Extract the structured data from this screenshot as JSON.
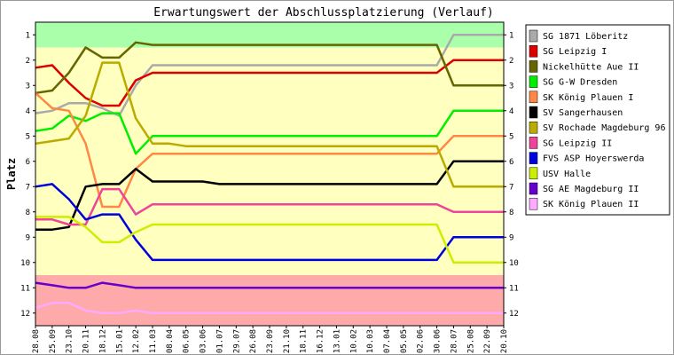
{
  "chart_data": {
    "type": "line",
    "title": "Erwartungswert der Abschlussplatzierung (Verlauf)",
    "ylabel": "Platz",
    "xlabel": "",
    "ylim": [
      12.5,
      0.5
    ],
    "y_inverted": true,
    "y_ticks": [
      1,
      2,
      3,
      4,
      5,
      6,
      7,
      8,
      9,
      10,
      11,
      12
    ],
    "grid": false,
    "legend_position": "right",
    "zones": [
      {
        "from": 0.5,
        "to": 1.5,
        "color": "#aaffaa"
      },
      {
        "from": 1.5,
        "to": 10.5,
        "color": "#ffffc0"
      },
      {
        "from": 10.5,
        "to": 12.5,
        "color": "#ffaaaa"
      }
    ],
    "x": [
      "28.08",
      "25.09",
      "23.10",
      "20.11",
      "18.12",
      "15.01",
      "12.02",
      "11.03",
      "08.04",
      "06.05",
      "03.06",
      "01.07",
      "29.07",
      "26.08",
      "23.09",
      "21.10",
      "18.11",
      "16.12",
      "13.01",
      "10.02",
      "10.03",
      "07.04",
      "05.05",
      "02.06",
      "30.06",
      "28.07",
      "25.08",
      "22.09",
      "20.10"
    ],
    "series": [
      {
        "name": "SG 1871 Löberitz",
        "color": "#aaaaaa",
        "values": [
          4.1,
          4.0,
          3.7,
          3.7,
          3.9,
          4.2,
          3.0,
          2.2,
          2.2,
          2.2,
          2.2,
          2.2,
          2.2,
          2.2,
          2.2,
          2.2,
          2.2,
          2.2,
          2.2,
          2.2,
          2.2,
          2.2,
          2.2,
          2.2,
          2.2,
          1.0,
          1.0,
          1.0,
          1.0
        ]
      },
      {
        "name": "SG Leipzig I",
        "color": "#dd0000",
        "values": [
          2.3,
          2.2,
          2.9,
          3.5,
          3.8,
          3.8,
          2.8,
          2.5,
          2.5,
          2.5,
          2.5,
          2.5,
          2.5,
          2.5,
          2.5,
          2.5,
          2.5,
          2.5,
          2.5,
          2.5,
          2.5,
          2.5,
          2.5,
          2.5,
          2.5,
          2.0,
          2.0,
          2.0,
          2.0
        ]
      },
      {
        "name": "Nickelhütte Aue II",
        "color": "#666600",
        "values": [
          3.3,
          3.2,
          2.5,
          1.5,
          1.9,
          1.9,
          1.3,
          1.4,
          1.4,
          1.4,
          1.4,
          1.4,
          1.4,
          1.4,
          1.4,
          1.4,
          1.4,
          1.4,
          1.4,
          1.4,
          1.4,
          1.4,
          1.4,
          1.4,
          1.4,
          3.0,
          3.0,
          3.0,
          3.0
        ]
      },
      {
        "name": "SG G-W Dresden",
        "color": "#00ee00",
        "values": [
          4.8,
          4.7,
          4.2,
          4.4,
          4.1,
          4.1,
          5.7,
          5.0,
          5.0,
          5.0,
          5.0,
          5.0,
          5.0,
          5.0,
          5.0,
          5.0,
          5.0,
          5.0,
          5.0,
          5.0,
          5.0,
          5.0,
          5.0,
          5.0,
          5.0,
          4.0,
          4.0,
          4.0,
          4.0
        ]
      },
      {
        "name": "SK König Plauen I",
        "color": "#ff8844",
        "values": [
          3.3,
          3.9,
          4.0,
          5.3,
          7.8,
          7.8,
          6.3,
          5.7,
          5.7,
          5.7,
          5.7,
          5.7,
          5.7,
          5.7,
          5.7,
          5.7,
          5.7,
          5.7,
          5.7,
          5.7,
          5.7,
          5.7,
          5.7,
          5.7,
          5.7,
          5.0,
          5.0,
          5.0,
          5.0
        ]
      },
      {
        "name": "SV Sangerhausen",
        "color": "#000000",
        "values": [
          8.7,
          8.7,
          8.6,
          7.0,
          6.9,
          6.9,
          6.3,
          6.8,
          6.8,
          6.8,
          6.8,
          6.9,
          6.9,
          6.9,
          6.9,
          6.9,
          6.9,
          6.9,
          6.9,
          6.9,
          6.9,
          6.9,
          6.9,
          6.9,
          6.9,
          6.0,
          6.0,
          6.0,
          6.0
        ]
      },
      {
        "name": "SV Rochade Magdeburg 96",
        "color": "#bbaa00",
        "values": [
          5.3,
          5.2,
          5.1,
          4.2,
          2.1,
          2.1,
          4.3,
          5.3,
          5.3,
          5.4,
          5.4,
          5.4,
          5.4,
          5.4,
          5.4,
          5.4,
          5.4,
          5.4,
          5.4,
          5.4,
          5.4,
          5.4,
          5.4,
          5.4,
          5.4,
          7.0,
          7.0,
          7.0,
          7.0
        ]
      },
      {
        "name": "SG Leipzig II",
        "color": "#ee4499",
        "values": [
          8.3,
          8.3,
          8.5,
          8.5,
          7.1,
          7.1,
          8.1,
          7.7,
          7.7,
          7.7,
          7.7,
          7.7,
          7.7,
          7.7,
          7.7,
          7.7,
          7.7,
          7.7,
          7.7,
          7.7,
          7.7,
          7.7,
          7.7,
          7.7,
          7.7,
          8.0,
          8.0,
          8.0,
          8.0
        ]
      },
      {
        "name": "FVS ASP Hoyerswerda",
        "color": "#0000dd",
        "values": [
          7.0,
          6.9,
          7.5,
          8.3,
          8.1,
          8.1,
          9.1,
          9.9,
          9.9,
          9.9,
          9.9,
          9.9,
          9.9,
          9.9,
          9.9,
          9.9,
          9.9,
          9.9,
          9.9,
          9.9,
          9.9,
          9.9,
          9.9,
          9.9,
          9.9,
          9.0,
          9.0,
          9.0,
          9.0
        ]
      },
      {
        "name": "USV Halle",
        "color": "#ccee00",
        "values": [
          8.2,
          8.2,
          8.2,
          8.6,
          9.2,
          9.2,
          8.8,
          8.5,
          8.5,
          8.5,
          8.5,
          8.5,
          8.5,
          8.5,
          8.5,
          8.5,
          8.5,
          8.5,
          8.5,
          8.5,
          8.5,
          8.5,
          8.5,
          8.5,
          8.5,
          10.0,
          10.0,
          10.0,
          10.0
        ]
      },
      {
        "name": "SG AE Magdeburg II",
        "color": "#6600cc",
        "values": [
          10.8,
          10.9,
          11.0,
          11.0,
          10.8,
          10.9,
          11.0,
          11.0,
          11.0,
          11.0,
          11.0,
          11.0,
          11.0,
          11.0,
          11.0,
          11.0,
          11.0,
          11.0,
          11.0,
          11.0,
          11.0,
          11.0,
          11.0,
          11.0,
          11.0,
          11.0,
          11.0,
          11.0,
          11.0
        ]
      },
      {
        "name": "SK König Plauen II",
        "color": "#ffaaff",
        "values": [
          11.8,
          11.6,
          11.6,
          11.9,
          12.0,
          12.0,
          11.9,
          12.0,
          12.0,
          12.0,
          12.0,
          12.0,
          12.0,
          12.0,
          12.0,
          12.0,
          12.0,
          12.0,
          12.0,
          12.0,
          12.0,
          12.0,
          12.0,
          12.0,
          12.0,
          12.0,
          12.0,
          12.0,
          12.0
        ]
      }
    ]
  }
}
